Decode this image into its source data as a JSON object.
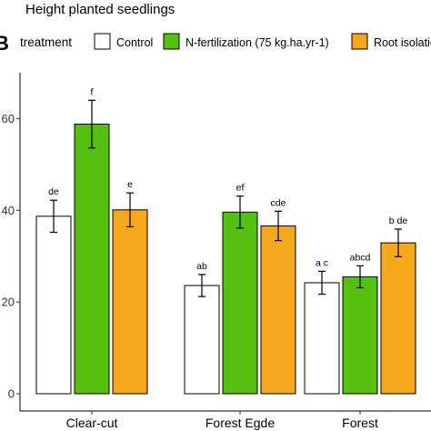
{
  "panel_letter": "B",
  "legend": {
    "title": "treatment",
    "entries": [
      {
        "label": "Control",
        "color": "#ffffff"
      },
      {
        "label": "N-fertilization (75 kg.ha.yr-1)",
        "color": "#55c010"
      },
      {
        "label": "Root isolation",
        "color": "#f5a81c"
      }
    ]
  },
  "chart_data": {
    "type": "bar",
    "title": "Height planted seedlings",
    "xlabel": "",
    "ylabel": "",
    "categories": [
      "Clear-cut",
      "Forest Egde",
      "Forest"
    ],
    "ylim": [
      0,
      70
    ],
    "yticks": [
      0,
      20,
      40,
      60
    ],
    "ytick_labels": [
      "0",
      "20",
      "40",
      "60"
    ],
    "grid": false,
    "legend_position": "top",
    "series": [
      {
        "name": "Control",
        "color": "#ffffff",
        "values": [
          38.7,
          23.6,
          24.2
        ],
        "errors": [
          3.5,
          2.4,
          2.5
        ],
        "labels": [
          "de",
          "ab",
          "a c"
        ]
      },
      {
        "name": "N-fertilization (75 kg.ha.yr-1)",
        "color": "#55c010",
        "values": [
          58.8,
          39.6,
          25.5
        ],
        "errors": [
          5.2,
          3.5,
          2.4
        ],
        "labels": [
          "f",
          "ef",
          "abcd"
        ]
      },
      {
        "name": "Root isolation",
        "color": "#f5a81c",
        "values": [
          40.1,
          36.6,
          32.9
        ],
        "errors": [
          3.7,
          3.2,
          3.0
        ],
        "labels": [
          "e",
          "cde",
          "b de"
        ]
      }
    ]
  }
}
